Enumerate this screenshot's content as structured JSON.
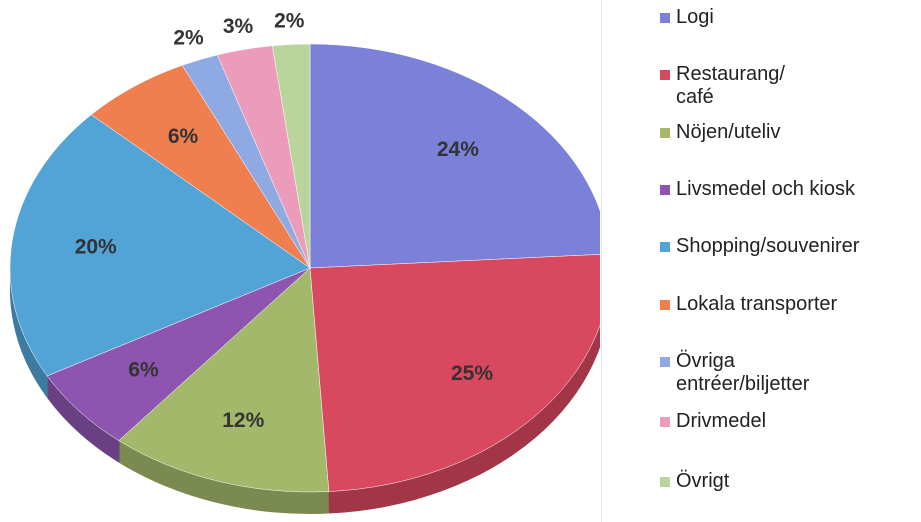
{
  "chart_data": {
    "type": "pie",
    "categories": [
      "Logi",
      "Restaurang/\ncafé",
      "Nöjen/uteliv",
      "Livsmedel och kiosk",
      "Shopping/souvenirer",
      "Lokala transporter",
      "Övriga\nentréer/biljetter",
      "Drivmedel",
      "Övrigt"
    ],
    "values": [
      24,
      25,
      12,
      6,
      20,
      6,
      2,
      3,
      2
    ],
    "value_labels": [
      "24%",
      "25%",
      "12%",
      "6%",
      "20%",
      "6%",
      "2%",
      "3%",
      "2%"
    ],
    "colors": [
      "#7b80d8",
      "#d8485f",
      "#a4b86b",
      "#8d55b0",
      "#52a4d6",
      "#f07f50",
      "#8fa9e2",
      "#eb9cbb",
      "#b9d59c"
    ],
    "legend": "right"
  }
}
